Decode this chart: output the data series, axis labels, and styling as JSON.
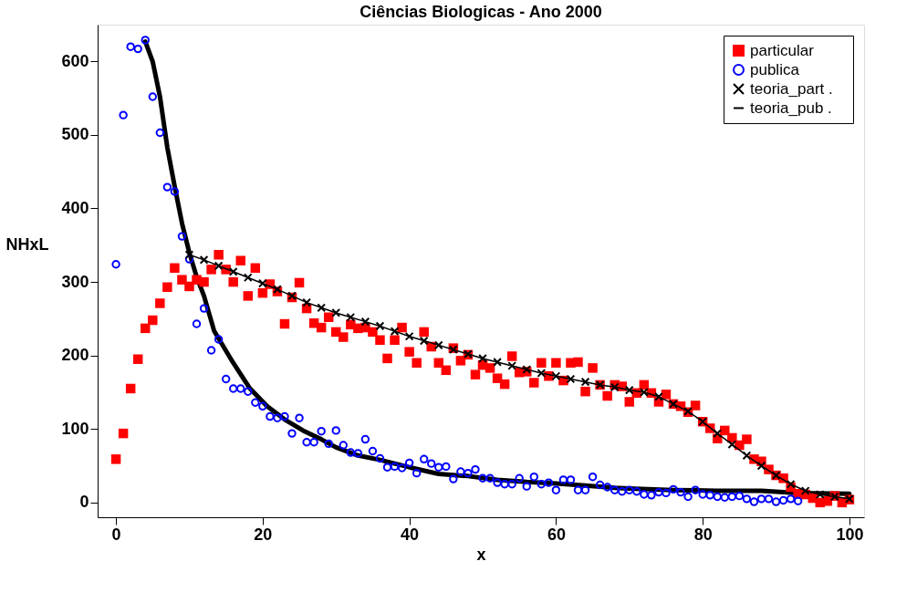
{
  "chart_data": {
    "type": "scatter",
    "title": "Ciências Biologicas - Ano 2000",
    "xlabel": "x",
    "ylabel": "NHxL",
    "xlim": [
      -2.5,
      102
    ],
    "ylim": [
      -20,
      650
    ],
    "xticks": [
      0,
      20,
      40,
      60,
      80,
      100
    ],
    "yticks": [
      0,
      100,
      200,
      300,
      400,
      500,
      600
    ],
    "grid": false,
    "legend": "top right",
    "series": [
      {
        "name": "particular",
        "marker": "square",
        "color": "#ff0000",
        "x": [
          0,
          1,
          2,
          3,
          4,
          5,
          6,
          7,
          8,
          9,
          10,
          11,
          12,
          13,
          14,
          15,
          16,
          17,
          18,
          19,
          20,
          21,
          22,
          23,
          24,
          25,
          26,
          27,
          28,
          29,
          30,
          31,
          32,
          33,
          34,
          35,
          36,
          37,
          38,
          39,
          40,
          41,
          42,
          43,
          44,
          45,
          46,
          47,
          48,
          49,
          50,
          51,
          52,
          53,
          54,
          55,
          56,
          57,
          58,
          59,
          60,
          61,
          62,
          63,
          64,
          65,
          66,
          67,
          68,
          69,
          70,
          71,
          72,
          73,
          74,
          75,
          76,
          77,
          78,
          79,
          80,
          81,
          82,
          83,
          84,
          85,
          86,
          87,
          88,
          89,
          90,
          91,
          92,
          93,
          94,
          95,
          96,
          97,
          98,
          99,
          100
        ],
        "values": [
          59,
          94,
          155,
          195,
          237,
          248,
          271,
          293,
          319,
          303,
          294,
          303,
          300,
          317,
          337,
          317,
          300,
          329,
          281,
          319,
          285,
          297,
          287,
          243,
          279,
          299,
          264,
          244,
          238,
          252,
          232,
          225,
          242,
          237,
          238,
          232,
          221,
          196,
          221,
          238,
          205,
          190,
          232,
          212,
          190,
          180,
          210,
          193,
          201,
          174,
          187,
          183,
          169,
          161,
          199,
          177,
          178,
          163,
          190,
          172,
          190,
          166,
          190,
          191,
          151,
          183,
          160,
          145,
          160,
          158,
          137,
          149,
          160,
          149,
          137,
          147,
          134,
          131,
          123,
          132,
          110,
          101,
          87,
          98,
          88,
          78,
          86,
          59,
          56,
          45,
          37,
          33,
          21,
          12,
          11,
          6,
          0,
          2,
          9,
          0,
          4
        ]
      },
      {
        "name": "publica",
        "marker": "circle",
        "color": "#0000ff",
        "x": [
          0,
          1,
          2,
          3,
          4,
          5,
          6,
          7,
          8,
          9,
          10,
          11,
          12,
          13,
          14,
          15,
          16,
          17,
          18,
          19,
          20,
          21,
          22,
          23,
          24,
          25,
          26,
          27,
          28,
          29,
          30,
          31,
          32,
          33,
          34,
          35,
          36,
          37,
          38,
          39,
          40,
          41,
          42,
          43,
          44,
          45,
          46,
          47,
          48,
          49,
          50,
          51,
          52,
          53,
          54,
          55,
          56,
          57,
          58,
          59,
          60,
          61,
          62,
          63,
          64,
          65,
          66,
          67,
          68,
          69,
          70,
          71,
          72,
          73,
          74,
          75,
          76,
          77,
          78,
          79,
          80,
          81,
          82,
          83,
          84,
          85,
          86,
          87,
          88,
          89,
          90,
          91,
          92,
          93
        ],
        "values": [
          324,
          527,
          620,
          617,
          629,
          552,
          503,
          429,
          423,
          362,
          331,
          243,
          264,
          207,
          222,
          168,
          155,
          155,
          151,
          136,
          131,
          117,
          115,
          117,
          94,
          115,
          82,
          82,
          97,
          80,
          98,
          78,
          68,
          67,
          86,
          70,
          60,
          48,
          49,
          47,
          54,
          40,
          59,
          53,
          48,
          49,
          32,
          42,
          40,
          45,
          33,
          33,
          27,
          25,
          25,
          33,
          22,
          35,
          25,
          27,
          17,
          31,
          31,
          17,
          17,
          35,
          24,
          21,
          17,
          15,
          17,
          15,
          11,
          10,
          14,
          13,
          18,
          14,
          8,
          17,
          11,
          10,
          8,
          7,
          8,
          9,
          5,
          1,
          5,
          5,
          1,
          3,
          5,
          2
        ]
      },
      {
        "name": "teoria_part    .",
        "type": "line",
        "marker": "cross",
        "color": "#000000",
        "x": [
          10,
          12,
          14,
          16,
          18,
          20,
          22,
          24,
          26,
          28,
          30,
          32,
          34,
          36,
          38,
          40,
          42,
          44,
          46,
          48,
          50,
          52,
          54,
          56,
          58,
          60,
          62,
          64,
          66,
          68,
          70,
          72,
          74,
          76,
          78,
          80,
          82,
          84,
          86,
          88,
          90,
          92,
          94,
          96,
          98,
          100
        ],
        "values": [
          337,
          330,
          322,
          314,
          306,
          298,
          290,
          281,
          272,
          265,
          258,
          252,
          246,
          240,
          233,
          226,
          220,
          214,
          208,
          202,
          196,
          191,
          186,
          181,
          176,
          172,
          168,
          164,
          160,
          157,
          153,
          150,
          144,
          134,
          124,
          110,
          94,
          79,
          64,
          50,
          37,
          25,
          16,
          11,
          8,
          5
        ]
      },
      {
        "name": "teoria_pub   .",
        "type": "line",
        "marker": "none",
        "color": "#000000",
        "x": [
          4,
          5,
          6,
          7,
          8,
          9,
          10,
          11,
          12,
          13.4,
          15.8,
          18.2,
          20.6,
          23,
          25.5,
          28,
          30,
          33,
          36,
          40,
          44,
          48,
          52,
          56,
          60,
          64,
          68,
          70,
          76,
          82,
          88,
          93,
          100
        ],
        "values": [
          627,
          600,
          552,
          483,
          430,
          380,
          340,
          307,
          281,
          233,
          193,
          156,
          131,
          113,
          98,
          86,
          75,
          64,
          58,
          48,
          39,
          36,
          31,
          28,
          26,
          23,
          20,
          19,
          17,
          16,
          16,
          13,
          12
        ]
      }
    ]
  }
}
